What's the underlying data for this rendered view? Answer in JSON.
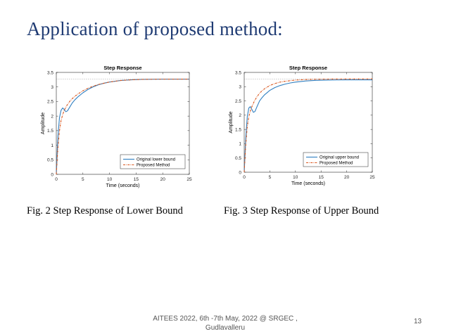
{
  "slide": {
    "title": "Application of proposed method:",
    "captions": [
      "Fig. 2 Step Response of Lower Bound",
      "Fig. 3 Step Response of Upper Bound"
    ],
    "footer_line1": "AITEES 2022, 6th -7th May, 2022 @ SRGEC ,",
    "footer_line2": "Gudlavalleru",
    "slide_number": "13"
  },
  "chart_data": [
    {
      "type": "line",
      "title": "Step Response",
      "xlabel": "Time (seconds)",
      "ylabel": "Amplitude",
      "xlim": [
        0,
        25
      ],
      "ylim": [
        0,
        3.5
      ],
      "xticks": [
        0,
        5,
        10,
        15,
        20,
        25
      ],
      "yticks": [
        0,
        0.5,
        1,
        1.5,
        2,
        2.5,
        3,
        3.5
      ],
      "grid": false,
      "legend": "bottom-right",
      "final_value": 3.27,
      "series": [
        {
          "name": "Original lower bound",
          "color": "#2f7fc1",
          "dash": "solid",
          "x": [
            0,
            0.3,
            0.6,
            0.9,
            1.2,
            1.5,
            1.8,
            2.1,
            2.5,
            3,
            3.5,
            4,
            5,
            6,
            7,
            8,
            9,
            10,
            12,
            14,
            16,
            18,
            20,
            22,
            25
          ],
          "y": [
            0,
            1.3,
            1.95,
            2.2,
            2.28,
            2.22,
            2.15,
            2.18,
            2.3,
            2.45,
            2.56,
            2.65,
            2.8,
            2.92,
            3.01,
            3.08,
            3.13,
            3.17,
            3.22,
            3.245,
            3.26,
            3.265,
            3.268,
            3.27,
            3.27
          ]
        },
        {
          "name": "Proposed Method",
          "color": "#d9541a",
          "dash": "dashdot",
          "x": [
            0,
            0.3,
            0.6,
            0.9,
            1.2,
            1.5,
            2,
            2.5,
            3,
            3.5,
            4,
            5,
            6,
            7,
            8,
            9,
            10,
            12,
            14,
            16,
            18,
            20,
            22,
            25
          ],
          "y": [
            0,
            0.9,
            1.5,
            1.85,
            2.05,
            2.2,
            2.37,
            2.5,
            2.6,
            2.68,
            2.75,
            2.87,
            2.96,
            3.03,
            3.09,
            3.13,
            3.17,
            3.22,
            3.245,
            3.26,
            3.265,
            3.268,
            3.27,
            3.27
          ]
        }
      ]
    },
    {
      "type": "line",
      "title": "Step Response",
      "xlabel": "Time (seconds)",
      "ylabel": "Amplitude",
      "xlim": [
        0,
        25
      ],
      "ylim": [
        0,
        3.5
      ],
      "xticks": [
        0,
        5,
        10,
        15,
        20,
        25
      ],
      "yticks": [
        0,
        0.5,
        1,
        1.5,
        2,
        2.5,
        3,
        3.5
      ],
      "grid": false,
      "legend": "bottom-right",
      "final_value": 3.27,
      "series": [
        {
          "name": "Original upper bound",
          "color": "#2f7fc1",
          "dash": "solid",
          "x": [
            0,
            0.3,
            0.6,
            0.9,
            1.2,
            1.5,
            1.8,
            2.1,
            2.5,
            3,
            3.5,
            4,
            5,
            6,
            7,
            8,
            9,
            10,
            12,
            14,
            16,
            18,
            20,
            22,
            25
          ],
          "y": [
            0,
            1.2,
            1.95,
            2.25,
            2.3,
            2.2,
            2.1,
            2.13,
            2.3,
            2.5,
            2.62,
            2.72,
            2.87,
            2.97,
            3.04,
            3.09,
            3.13,
            3.16,
            3.2,
            3.22,
            3.23,
            3.235,
            3.24,
            3.24,
            3.24
          ]
        },
        {
          "name": "Proposed Method",
          "color": "#d9541a",
          "dash": "dashdot",
          "x": [
            0,
            0.3,
            0.6,
            0.9,
            1.2,
            1.5,
            2,
            2.5,
            3,
            3.5,
            4,
            5,
            6,
            7,
            8,
            9,
            10,
            12,
            14,
            16,
            18,
            20,
            22,
            25
          ],
          "y": [
            0,
            0.95,
            1.6,
            1.95,
            2.15,
            2.3,
            2.5,
            2.65,
            2.77,
            2.86,
            2.93,
            3.04,
            3.11,
            3.16,
            3.19,
            3.21,
            3.23,
            3.25,
            3.26,
            3.265,
            3.268,
            3.27,
            3.27,
            3.27
          ]
        }
      ]
    }
  ]
}
